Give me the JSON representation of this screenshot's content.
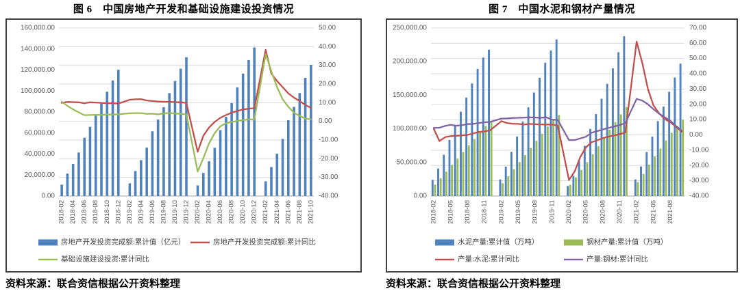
{
  "page": {
    "background": "#ffffff"
  },
  "chart_data": [
    {
      "type": "bar",
      "combo": "bar-line",
      "title": "图 6　中国房地产开发和基础设施建设投资情况",
      "source": "资料来源：联合资信根据公开资料整理",
      "colors": {
        "bar_blue": "#4F81BD",
        "line_red": "#C0504D",
        "line_green": "#9BBB59"
      },
      "gridline_color": "#D9D9D9",
      "axis_line_color": "#A6A6A6",
      "left_axis": {
        "min": 0,
        "max": 160000,
        "step": 20000
      },
      "right_axis": {
        "min": -40,
        "max": 50,
        "step": 10
      },
      "x_tick_every": 2,
      "grid": "horizontal",
      "legend_position": "bottom",
      "categories": [
        "2018-02",
        "2018-03",
        "2018-04",
        "2018-05",
        "2018-06",
        "2018-07",
        "2018-08",
        "2018-09",
        "2018-10",
        "2018-11",
        "2018-12",
        "2019-01",
        "2019-02",
        "2019-03",
        "2019-04",
        "2019-05",
        "2019-06",
        "2019-07",
        "2019-08",
        "2019-09",
        "2019-10",
        "2019-11",
        "2019-12",
        "2020-01",
        "2020-02",
        "2020-03",
        "2020-04",
        "2020-05",
        "2020-06",
        "2020-07",
        "2020-08",
        "2020-09",
        "2020-10",
        "2020-11",
        "2020-12",
        "2021-01",
        "2021-02",
        "2021-03",
        "2021-04",
        "2021-05",
        "2021-06",
        "2021-07",
        "2021-08",
        "2021-09",
        "2021-10"
      ],
      "bar_series": [
        {
          "name": "房地产开发投资完成额:累计值（亿元）",
          "color": "bar_blue",
          "axis": "left",
          "values": [
            10831,
            21291,
            30592,
            41420,
            55531,
            65886,
            76519,
            88665,
            99325,
            110083,
            120264,
            null,
            12090,
            23803,
            34217,
            46075,
            61609,
            72843,
            84589,
            98008,
            109603,
            121265,
            132194,
            null,
            10115,
            21963,
            33103,
            45920,
            62780,
            75325,
            88454,
            103484,
            116556,
            129492,
            141443,
            null,
            13986,
            27576,
            40240,
            54318,
            72179,
            84895,
            98060,
            112568,
            124934
          ]
        }
      ],
      "line_series": [
        {
          "name": "房地产开发投资完成额:累计同比",
          "color": "line_red",
          "axis": "right",
          "values": [
            9.9,
            10.4,
            10.3,
            10.2,
            9.7,
            10.2,
            10.1,
            9.9,
            9.7,
            9.7,
            9.5,
            null,
            11.6,
            11.8,
            11.9,
            11.2,
            10.9,
            10.6,
            10.5,
            10.5,
            10.3,
            10.2,
            9.9,
            null,
            -16.3,
            -7.7,
            -3.3,
            -0.3,
            1.9,
            3.4,
            4.6,
            5.6,
            6.3,
            6.8,
            7.0,
            null,
            38.3,
            25.6,
            21.6,
            18.3,
            15.0,
            12.7,
            10.9,
            8.8,
            7.2
          ]
        },
        {
          "name": "基础设施建设投资:累计同比",
          "color": "line_green",
          "axis": "right",
          "values": [
            10.5,
            8.3,
            6.4,
            4.8,
            3.3,
            3.4,
            3.5,
            3.5,
            3.6,
            3.7,
            3.8,
            null,
            4.3,
            4.4,
            4.4,
            4.0,
            4.1,
            3.8,
            4.2,
            4.5,
            4.2,
            4.0,
            3.8,
            null,
            -26.9,
            -19.7,
            -11.8,
            -6.3,
            -2.7,
            -1.0,
            -0.3,
            0.2,
            0.7,
            1.0,
            0.9,
            null,
            36.0,
            26.8,
            18.4,
            11.8,
            7.8,
            4.6,
            2.9,
            1.5,
            1.0
          ]
        }
      ],
      "legend": [
        {
          "label": "房地产开发投资完成额:累计值（亿元）",
          "type": "bar",
          "color": "bar_blue"
        },
        {
          "label": "房地产开发投资完成额:累计同比",
          "type": "line",
          "color": "line_red"
        },
        {
          "label": "基础设施建设投资:累计同比",
          "type": "line",
          "color": "line_green"
        }
      ]
    },
    {
      "type": "bar",
      "combo": "bar-line",
      "title": "图 7　中国水泥和钢材产量情况",
      "source": "资料来源：联合资信根据公开资料整理",
      "colors": {
        "bar_blue": "#4F81BD",
        "bar_green": "#9BBB59",
        "line_red": "#C0504D",
        "line_purple": "#8064A2"
      },
      "gridline_color": "#D9D9D9",
      "axis_line_color": "#A6A6A6",
      "left_axis": {
        "min": 0,
        "max": 250000,
        "step": 50000
      },
      "right_axis": {
        "min": -40,
        "max": 70,
        "step": 10
      },
      "x_tick_every": 3,
      "grid": "horizontal",
      "legend_position": "bottom",
      "categories": [
        "2018-02",
        "2018-03",
        "2018-04",
        "2018-05",
        "2018-06",
        "2018-07",
        "2018-08",
        "2018-09",
        "2018-10",
        "2018-11",
        "2018-12",
        "2019-01",
        "2019-02",
        "2019-03",
        "2019-04",
        "2019-05",
        "2019-06",
        "2019-07",
        "2019-08",
        "2019-09",
        "2019-10",
        "2019-11",
        "2019-12",
        "2020-01",
        "2020-02",
        "2020-03",
        "2020-04",
        "2020-05",
        "2020-06",
        "2020-07",
        "2020-08",
        "2020-09",
        "2020-10",
        "2020-11",
        "2020-12",
        "2021-01",
        "2021-02",
        "2021-03",
        "2021-04",
        "2021-05",
        "2021-06",
        "2021-07",
        "2021-08",
        "2021-09",
        "2021-10"
      ],
      "bar_series": [
        {
          "name": "水泥产量:累计值（万吨）",
          "color": "bar_blue",
          "axis": "left",
          "values": [
            24000,
            41000,
            61500,
            83500,
            105000,
            125500,
            146500,
            167500,
            189000,
            206000,
            217667,
            null,
            24600,
            43800,
            65600,
            88600,
            111000,
            132000,
            154000,
            176000,
            198500,
            216500,
            233040,
            null,
            14982,
            29857,
            51966,
            74717,
            99832,
            121932,
            144760,
            166966,
            190000,
            214000,
            237691,
            null,
            24562,
            43918,
            65310,
            88380,
            111470,
            132990,
            155110,
            176310,
            197000
          ]
        },
        {
          "name": "钢材产量:累计值（万吨）",
          "color": "bar_green",
          "axis": "left",
          "values": [
            17000,
            26500,
            36200,
            46100,
            55800,
            65400,
            75200,
            84900,
            94700,
            104200,
            110552,
            null,
            19000,
            29400,
            39900,
            50500,
            61100,
            71600,
            82200,
            92800,
            103500,
            113000,
            120477,
            null,
            16700,
            27700,
            38900,
            50400,
            62200,
            74100,
            86300,
            98700,
            110200,
            121500,
            132489,
            null,
            20600,
            32900,
            46700,
            58900,
            70800,
            82700,
            94200,
            104400,
            113300
          ]
        }
      ],
      "line_series": [
        {
          "name": "产量:水泥:累计同比",
          "color": "line_red",
          "axis": "right",
          "values": [
            4.0,
            -4.0,
            -1.5,
            -0.8,
            -0.6,
            -0.3,
            0.0,
            1.0,
            2.0,
            2.3,
            3.0,
            null,
            9.0,
            7.8,
            7.3,
            7.2,
            6.8,
            7.2,
            7.0,
            6.9,
            6.8,
            6.8,
            6.1,
            null,
            -29.5,
            -23.9,
            -14.5,
            -8.2,
            -4.8,
            -3.5,
            -2.1,
            -1.1,
            -0.4,
            0.5,
            1.6,
            null,
            61.1,
            47.3,
            30.1,
            19.2,
            14.1,
            10.4,
            8.3,
            5.3,
            2.1
          ]
        },
        {
          "name": "产量:钢材:累计同比",
          "color": "line_purple",
          "axis": "right",
          "values": [
            4.6,
            4.7,
            5.9,
            6.6,
            6.0,
            6.4,
            7.1,
            7.2,
            7.8,
            8.3,
            8.5,
            null,
            10.7,
            10.8,
            11.1,
            11.2,
            11.4,
            11.5,
            11.4,
            11.3,
            11.5,
            10.0,
            9.8,
            null,
            -3.4,
            -3.4,
            -2.3,
            -1.2,
            1.4,
            2.5,
            3.6,
            4.6,
            5.5,
            6.5,
            7.7,
            null,
            23.6,
            22.5,
            20.1,
            16.8,
            13.9,
            11.6,
            9.2,
            5.8,
            2.8
          ]
        }
      ],
      "legend": [
        {
          "label": "水泥产量:累计值（万吨）",
          "type": "bar",
          "color": "bar_blue"
        },
        {
          "label": "钢材产量:累计值（万吨）",
          "type": "bar",
          "color": "bar_green"
        },
        {
          "label": "产量:水泥:累计同比",
          "type": "line",
          "color": "line_red"
        },
        {
          "label": "产量:钢材:累计同比",
          "type": "line",
          "color": "line_purple"
        }
      ]
    }
  ]
}
